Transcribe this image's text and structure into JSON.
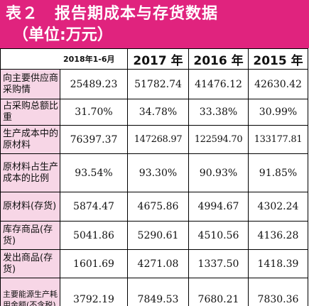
{
  "title": {
    "line1": "表２　报告期成本与存货数据",
    "line2": "（单位:万元）"
  },
  "table": {
    "columns": [
      "2018年1-6月",
      "2017 年",
      "2016 年",
      "2015 年"
    ],
    "rows": [
      {
        "label": "向主要供应商采购情",
        "values": [
          "25489.23",
          "51782.74",
          "41476.12",
          "42630.42"
        ]
      },
      {
        "label": "占采购总额比重",
        "values": [
          "31.70%",
          "34.78%",
          "33.38%",
          "30.99%"
        ]
      },
      {
        "label": "生产成本中的原材料",
        "values": [
          "76397.37",
          "147268.97",
          "122594.70",
          "133177.81"
        ]
      },
      {
        "label": "原材料占生产成本的比例",
        "values": [
          "93.54%",
          "93.30%",
          "90.93%",
          "91.85%"
        ]
      },
      {
        "label": "原材料(存货)",
        "values": [
          "5874.47",
          "4675.86",
          "4994.67",
          "4302.24"
        ]
      },
      {
        "label": "库存商品(存货)",
        "values": [
          "5041.86",
          "5290.61",
          "4510.56",
          "4136.28"
        ]
      },
      {
        "label": "发出商品(存货)",
        "values": [
          "1601.69",
          "4271.08",
          "1337.50",
          "1418.39"
        ]
      },
      {
        "label": "主要能源生产耗用金额(不含税)",
        "values": [
          "3792.19",
          "7849.53",
          "7680.21",
          "7830.36"
        ]
      }
    ]
  }
}
